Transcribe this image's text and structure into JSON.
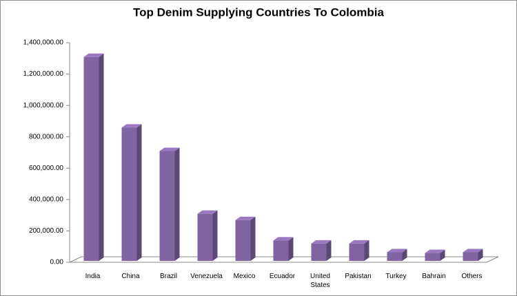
{
  "chart_data": {
    "type": "bar3d",
    "title": "Top Denim Supplying Countries To Colombia",
    "categories": [
      "India",
      "China",
      "Brazil",
      "Venezuela",
      "Mexico",
      "Ecuador",
      "United States",
      "Pakistan",
      "Turkey",
      "Bahrain",
      "Others"
    ],
    "values": [
      1300000,
      850000,
      700000,
      300000,
      260000,
      130000,
      110000,
      110000,
      55000,
      50000,
      55000
    ],
    "color": "#8064a2",
    "ylim": [
      0,
      1400000
    ],
    "yticks": [
      {
        "value": 0,
        "label": "0.00"
      },
      {
        "value": 200000,
        "label": "200,000.00"
      },
      {
        "value": 400000,
        "label": "400,000.00"
      },
      {
        "value": 600000,
        "label": "600,000.00"
      },
      {
        "value": 800000,
        "label": "800,000.00"
      },
      {
        "value": 1000000,
        "label": "1,000,000.00"
      },
      {
        "value": 1200000,
        "label": "1,200,000.00"
      },
      {
        "value": 1400000,
        "label": "1,400,000.00"
      }
    ],
    "grid": false
  }
}
